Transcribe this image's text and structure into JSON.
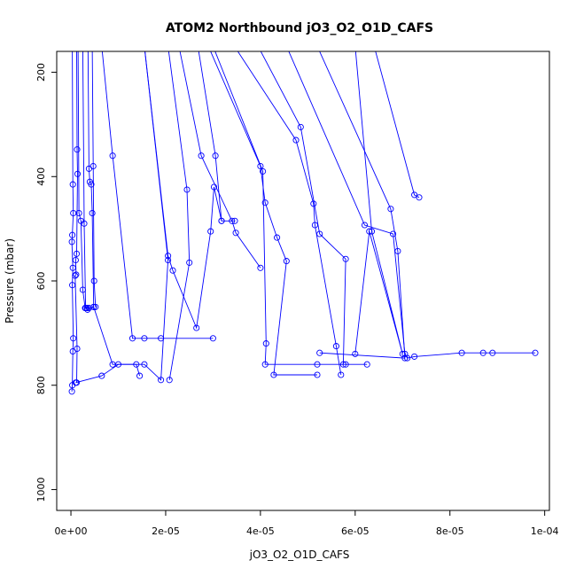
{
  "chart_data": {
    "type": "line",
    "title": "ATOM2 Northbound jO3_O2_O1D_CAFS",
    "xlabel": "jO3_O2_O1D_CAFS",
    "ylabel": "Pressure (mbar)",
    "xlim": [
      -3e-06,
      0.000101
    ],
    "ylim": [
      1040,
      160
    ],
    "y_reversed": true,
    "xticks": [
      0,
      2e-05,
      4e-05,
      6e-05,
      8e-05,
      0.0001
    ],
    "xtick_labels": [
      "0e+00",
      "2e-05",
      "4e-05",
      "6e-05",
      "8e-05",
      "1e-04"
    ],
    "yticks": [
      200,
      400,
      600,
      800,
      1000
    ],
    "ytick_labels": [
      "200",
      "400",
      "600",
      "800",
      "1000"
    ],
    "grid": false,
    "legend": "none",
    "line_color": "#0000ff",
    "marker": "open-circle",
    "series": [
      {
        "x": [
          3e-07,
          4e-07,
          5e-07,
          3e-07,
          2e-07,
          4e-07,
          3e-07,
          5e-07,
          4e-07,
          3e-07,
          2e-07
        ],
        "y": [
          150,
          415,
          470,
          512,
          525,
          575,
          608,
          710,
          735,
          800,
          812
        ]
      },
      {
        "x": [
          1.2e-06,
          1.3e-06,
          1.4e-06,
          1.2e-06,
          1e-06,
          1.1e-06,
          9e-07,
          1.3e-06,
          1.2e-06
        ],
        "y": [
          150,
          348,
          395,
          548,
          560,
          588,
          590,
          730,
          795
        ]
      },
      {
        "x": [
          1.5e-06,
          1.7e-06,
          2.1e-06,
          2.5e-06,
          3e-06,
          3.4e-06,
          3.8e-06
        ],
        "y": [
          150,
          470,
          485,
          617,
          652,
          652,
          652
        ]
      },
      {
        "x": [
          3.6e-06,
          3.8e-06,
          4e-06,
          4.3e-06,
          4.5e-06,
          4.8e-06
        ],
        "y": [
          150,
          385,
          410,
          415,
          470,
          650
        ]
      },
      {
        "x": [
          4.5e-06,
          4.7e-06,
          4.9e-06,
          5.2e-06
        ],
        "y": [
          150,
          380,
          600,
          650
        ]
      },
      {
        "x": [
          2.5e-06,
          2.8e-06,
          3.1e-06,
          3.5e-06,
          4.8e-06,
          8.8e-06,
          1.38e-05,
          1.45e-05
        ],
        "y": [
          150,
          490,
          652,
          655,
          650,
          760,
          760,
          782
        ]
      },
      {
        "x": [
          6.5e-06,
          8.8e-06,
          1.3e-05,
          1.55e-05,
          1.9e-05,
          3e-05
        ],
        "y": [
          150,
          360,
          710,
          710,
          710,
          710
        ]
      },
      {
        "x": [
          1.55e-05,
          2.05e-05,
          2.15e-05,
          2.65e-05,
          2.95e-05,
          3.02e-05,
          3.18e-05
        ],
        "y": [
          150,
          552,
          580,
          690,
          505,
          420,
          485
        ]
      },
      {
        "x": [
          1.55e-05,
          2.05e-05,
          1.9e-05,
          1.55e-05,
          1e-05,
          6.5e-06,
          1e-06
        ],
        "y": [
          150,
          560,
          790,
          760,
          760,
          782,
          795
        ]
      },
      {
        "x": [
          2.05e-05,
          2.45e-05,
          2.5e-05,
          2.08e-05
        ],
        "y": [
          150,
          425,
          565,
          790
        ]
      },
      {
        "x": [
          2.28e-05,
          2.75e-05,
          3.4e-05,
          3.48e-05,
          4e-05
        ],
        "y": [
          150,
          360,
          485,
          508,
          575
        ]
      },
      {
        "x": [
          2.68e-05,
          3.05e-05,
          3.18e-05,
          3.46e-05
        ],
        "y": [
          150,
          360,
          485,
          485
        ]
      },
      {
        "x": [
          2.9e-05,
          4e-05,
          4.1e-05,
          4.35e-05,
          4.55e-05,
          4.28e-05,
          5.2e-05
        ],
        "y": [
          150,
          380,
          450,
          517,
          562,
          780,
          780
        ]
      },
      {
        "x": [
          3e-05,
          4.05e-05,
          4.12e-05,
          4.1e-05,
          5.2e-05,
          5.8e-05,
          6.25e-05
        ],
        "y": [
          150,
          390,
          720,
          760,
          760,
          760,
          760
        ]
      },
      {
        "x": [
          3.45e-05,
          4.75e-05,
          5.12e-05,
          5.15e-05,
          5.6e-05,
          5.7e-05
        ],
        "y": [
          150,
          330,
          452,
          493,
          725,
          780
        ]
      },
      {
        "x": [
          3.95e-05,
          4.85e-05,
          5.25e-05,
          5.8e-05,
          5.75e-05
        ],
        "y": [
          150,
          305,
          510,
          558,
          760
        ]
      },
      {
        "x": [
          4.55e-05,
          6.2e-05,
          6.8e-05,
          7.05e-05,
          7.1e-05,
          7.25e-05,
          8.25e-05,
          8.7e-05,
          8.9e-05,
          9.8e-05
        ],
        "y": [
          150,
          493,
          510,
          740,
          748,
          745,
          738,
          738,
          738,
          738
        ]
      },
      {
        "x": [
          5.2e-05,
          6.75e-05,
          6.9e-05,
          7.05e-05,
          5.25e-05
        ],
        "y": [
          150,
          462,
          543,
          748,
          738
        ]
      },
      {
        "x": [
          6e-05,
          6.35e-05,
          7e-05,
          6.3e-05,
          6e-05
        ],
        "y": [
          150,
          505,
          740,
          505,
          740
        ]
      },
      {
        "x": [
          6.4e-05,
          7.25e-05,
          7.35e-05
        ],
        "y": [
          150,
          435,
          440
        ]
      }
    ]
  }
}
